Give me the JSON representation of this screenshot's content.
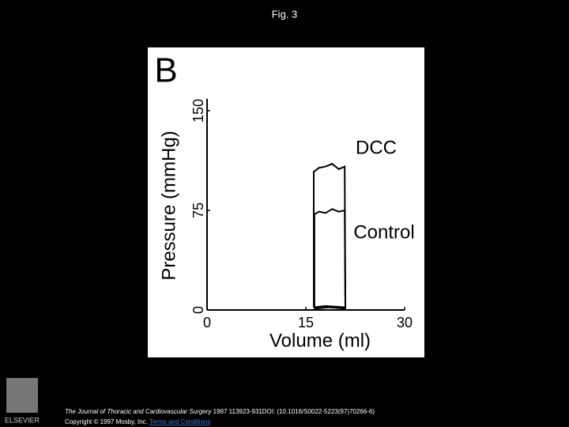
{
  "slide": {
    "header": "Fig. 3",
    "journal": "The Journal of Thoracic and Cardiovascular Surgery",
    "citation": " 1997 113923-931DOI: (10.1016/S0022-5223(97)70266-6)",
    "copyright": "Copyright © 1997 Mosby, Inc. ",
    "terms": "Terms and Conditions",
    "publisher": "ELSEVIER"
  },
  "chart_data": {
    "type": "line",
    "panel_label": "B",
    "x_label": "Volume (ml)",
    "y_label": "Pressure (mmHg)",
    "xlim": [
      0,
      30
    ],
    "ylim": [
      0,
      150
    ],
    "xticks": [
      0,
      15,
      30
    ],
    "yticks": [
      0,
      75,
      150
    ],
    "grid": false,
    "series": [
      {
        "name": "DCC",
        "color": "#000000",
        "x": [
          16.2,
          16.2,
          17,
          18,
          19,
          20,
          20.9,
          21,
          18,
          16.2
        ],
        "values": [
          2,
          104,
          107,
          108,
          110,
          106,
          108,
          2,
          3,
          2
        ]
      },
      {
        "name": "Control",
        "color": "#000000",
        "x": [
          16.3,
          16.3,
          17,
          18,
          19,
          20,
          20.9,
          21,
          18.5,
          16.3
        ],
        "values": [
          1,
          72,
          74,
          73,
          76,
          74,
          75,
          1,
          2,
          1
        ]
      }
    ]
  }
}
